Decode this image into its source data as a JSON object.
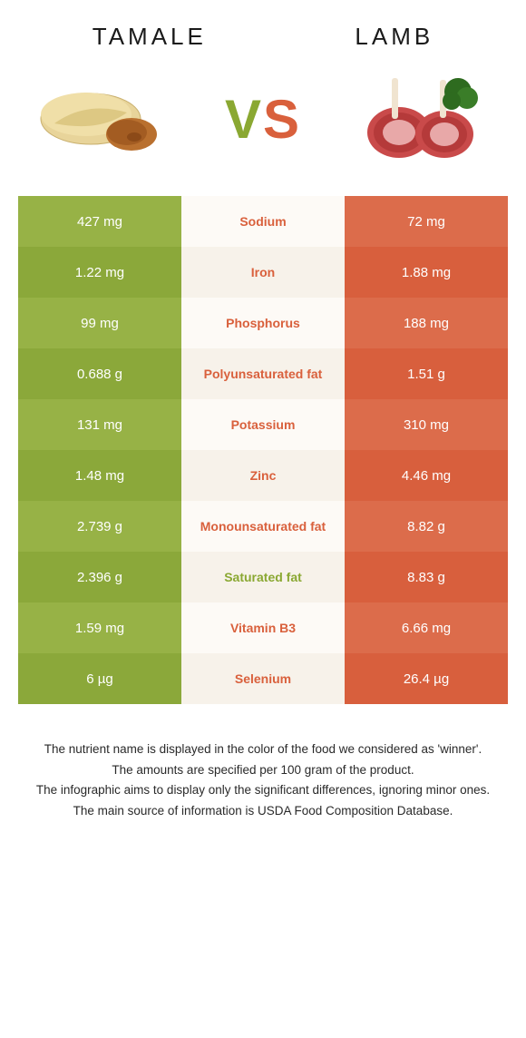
{
  "food1": {
    "name": "TAMALE"
  },
  "food2": {
    "name": "LAMB"
  },
  "vs": {
    "v": "V",
    "s": "S"
  },
  "colors": {
    "food1_bg_a": "#97b246",
    "food1_bg_b": "#8ba83a",
    "food2_bg_a": "#dc6c4b",
    "food2_bg_b": "#d85f3d",
    "mid_bg_a": "#fdfaf6",
    "mid_bg_b": "#f7f2ea",
    "winner_food1": "#8aa832",
    "winner_food2": "#d9603c"
  },
  "nutrients": [
    {
      "name": "Sodium",
      "val1": "427 mg",
      "val2": "72 mg",
      "winner": 2
    },
    {
      "name": "Iron",
      "val1": "1.22 mg",
      "val2": "1.88 mg",
      "winner": 2
    },
    {
      "name": "Phosphorus",
      "val1": "99 mg",
      "val2": "188 mg",
      "winner": 2
    },
    {
      "name": "Polyunsaturated fat",
      "val1": "0.688 g",
      "val2": "1.51 g",
      "winner": 2
    },
    {
      "name": "Potassium",
      "val1": "131 mg",
      "val2": "310 mg",
      "winner": 2
    },
    {
      "name": "Zinc",
      "val1": "1.48 mg",
      "val2": "4.46 mg",
      "winner": 2
    },
    {
      "name": "Monounsaturated fat",
      "val1": "2.739 g",
      "val2": "8.82 g",
      "winner": 2
    },
    {
      "name": "Saturated fat",
      "val1": "2.396 g",
      "val2": "8.83 g",
      "winner": 1
    },
    {
      "name": "Vitamin B3",
      "val1": "1.59 mg",
      "val2": "6.66 mg",
      "winner": 2
    },
    {
      "name": "Selenium",
      "val1": "6 µg",
      "val2": "26.4 µg",
      "winner": 2
    }
  ],
  "footer": {
    "l1": "The nutrient name is displayed in the color of the food we considered as 'winner'.",
    "l2": "The amounts are specified per 100 gram of the product.",
    "l3": "The infographic aims to display only the significant differences, ignoring minor ones.",
    "l4": "The main source of information is USDA Food Composition Database."
  }
}
